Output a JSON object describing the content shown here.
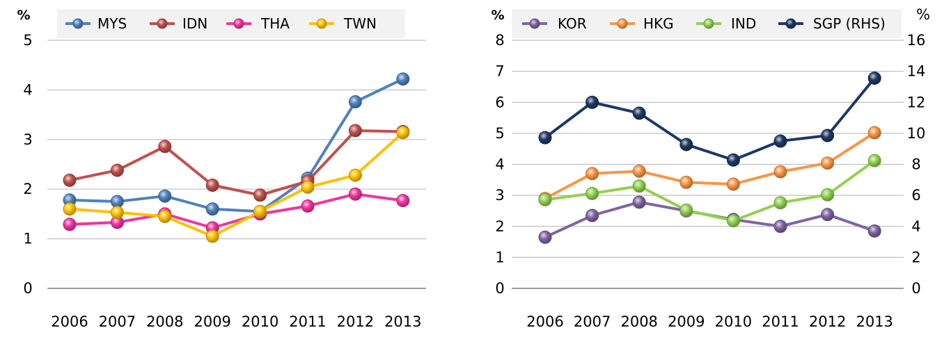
{
  "chart_data": [
    {
      "type": "line",
      "y_unit": "%",
      "categories": [
        "2006",
        "2007",
        "2008",
        "2009",
        "2010",
        "2011",
        "2012",
        "2013"
      ],
      "ylim": [
        0,
        5
      ],
      "yticks": [
        "0",
        "1",
        "2",
        "3",
        "4",
        "5"
      ],
      "grid": true,
      "legend": "top",
      "series": [
        {
          "name": "MYS",
          "color": "#4f81bd",
          "values": [
            1.78,
            1.75,
            1.86,
            1.6,
            1.55,
            2.22,
            3.76,
            4.22
          ]
        },
        {
          "name": "IDN",
          "color": "#c0504d",
          "values": [
            2.18,
            2.38,
            2.86,
            2.08,
            1.88,
            2.16,
            3.18,
            3.16
          ]
        },
        {
          "name": "THA",
          "color": "#f0359d",
          "values": [
            1.29,
            1.33,
            1.5,
            1.22,
            1.5,
            1.66,
            1.9,
            1.77
          ]
        },
        {
          "name": "TWN",
          "color": "#ffc000",
          "values": [
            1.6,
            1.53,
            1.45,
            1.05,
            1.55,
            2.04,
            2.28,
            3.14
          ]
        }
      ]
    },
    {
      "type": "line",
      "y_unit": "%",
      "y2_unit": "%",
      "categories": [
        "2006",
        "2007",
        "2008",
        "2009",
        "2010",
        "2011",
        "2012",
        "2013"
      ],
      "ylim": [
        0,
        8
      ],
      "yticks": [
        "0",
        "1",
        "2",
        "3",
        "4",
        "5",
        "6",
        "7",
        "8"
      ],
      "y2lim": [
        0,
        16
      ],
      "y2ticks": [
        "0",
        "2",
        "4",
        "6",
        "8",
        "10",
        "12",
        "14",
        "16"
      ],
      "grid": true,
      "legend": "top",
      "series": [
        {
          "name": "KOR",
          "color": "#8064a2",
          "axis": "left",
          "values": [
            1.65,
            2.35,
            2.78,
            2.5,
            2.22,
            2.0,
            2.38,
            1.85
          ]
        },
        {
          "name": "HKG",
          "color": "#f79646",
          "axis": "left",
          "values": [
            2.9,
            3.7,
            3.78,
            3.42,
            3.36,
            3.76,
            4.04,
            5.02
          ]
        },
        {
          "name": "IND",
          "color": "#92d050",
          "axis": "left",
          "values": [
            2.86,
            3.06,
            3.3,
            2.52,
            2.18,
            2.76,
            3.02,
            4.12
          ]
        },
        {
          "name": "SGP (RHS)",
          "color": "#1f3864",
          "axis": "right",
          "values": [
            9.72,
            12.0,
            11.3,
            9.28,
            8.28,
            9.5,
            9.86,
            13.56
          ]
        }
      ]
    }
  ]
}
